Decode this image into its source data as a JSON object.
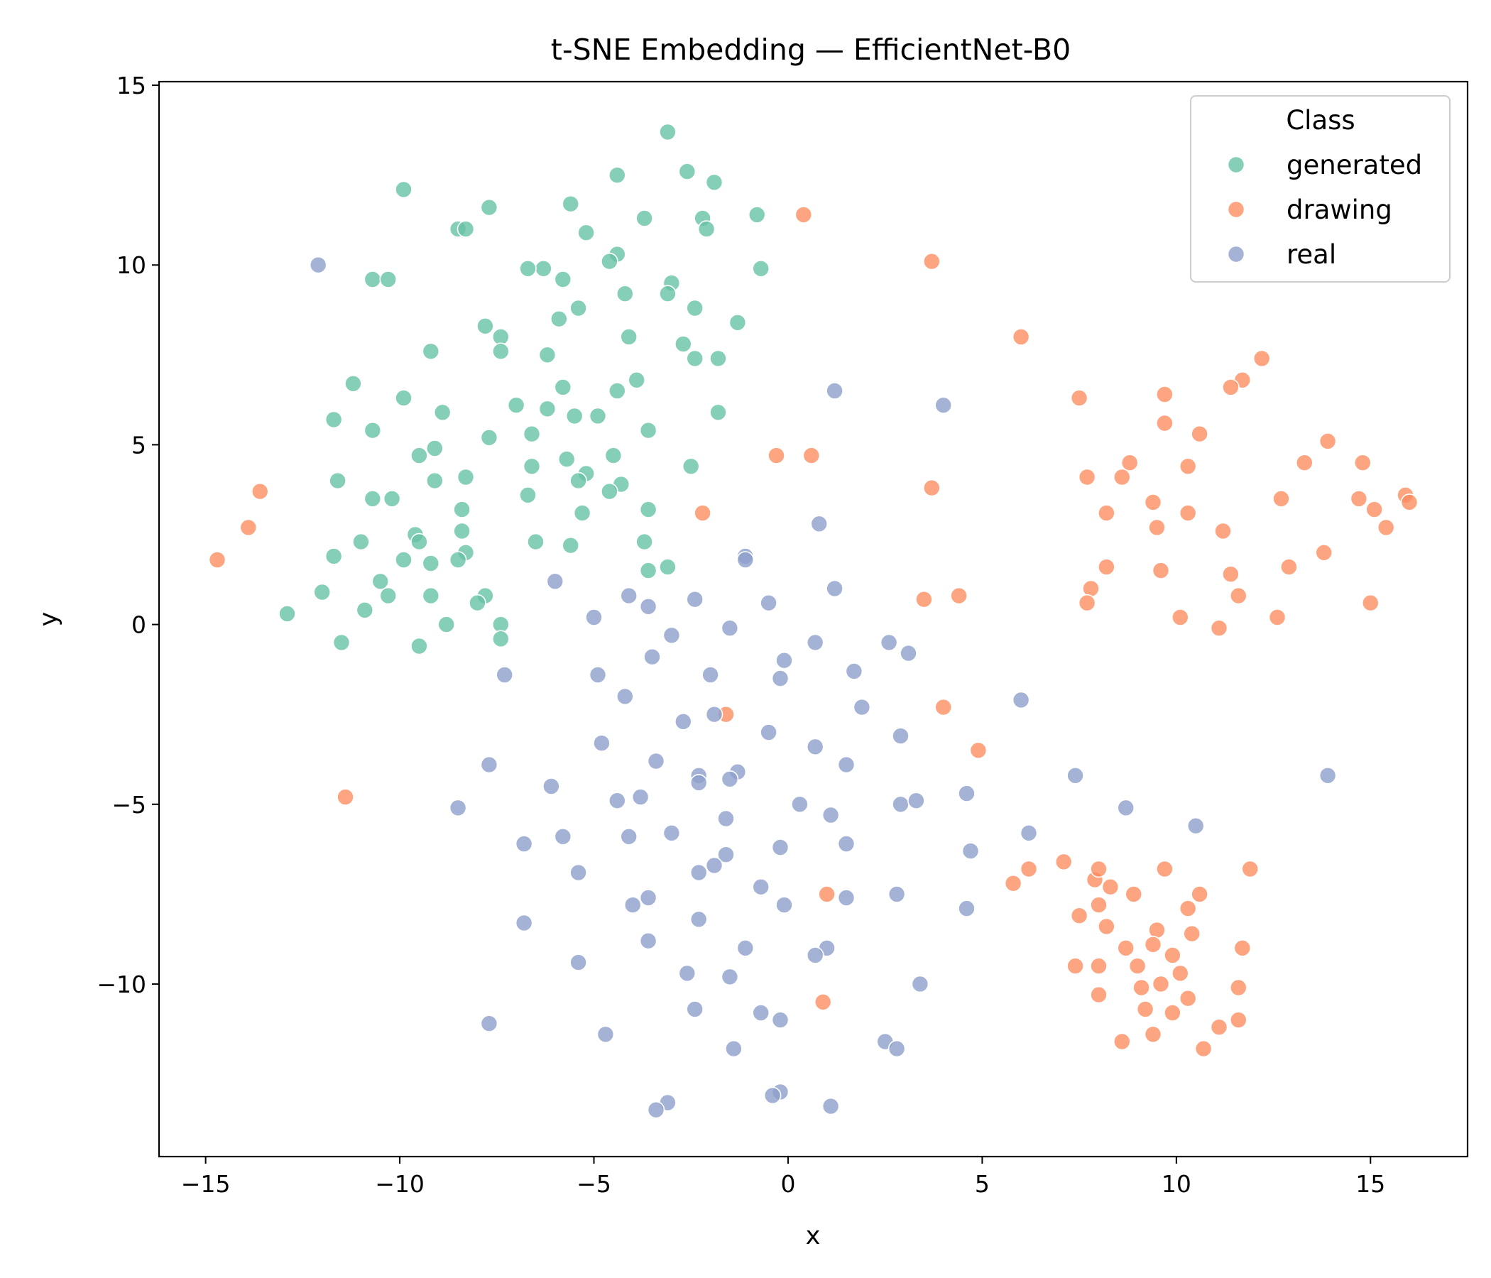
{
  "chart_data": {
    "type": "scatter",
    "title": "t-SNE Embedding — EfficientNet-B0",
    "xlabel": "x",
    "ylabel": "y",
    "xlim": [
      -16.2,
      17.5
    ],
    "ylim": [
      -14.8,
      15.1
    ],
    "xticks": [
      -15,
      -10,
      -5,
      0,
      5,
      10,
      15
    ],
    "yticks": [
      -10,
      -5,
      0,
      5,
      10,
      15
    ],
    "xtick_labels": [
      "−15",
      "−10",
      "−5",
      "0",
      "5",
      "10",
      "15"
    ],
    "ytick_labels": [
      "−10",
      "−5",
      "0",
      "5",
      "10",
      "15"
    ],
    "grid": false,
    "legend": {
      "title": "Class",
      "placement": "top-right"
    },
    "series": [
      {
        "name": "generated",
        "color": "#66c2a5",
        "points": [
          [
            -3.1,
            13.7
          ],
          [
            -2.6,
            12.6
          ],
          [
            -4.4,
            12.5
          ],
          [
            -1.9,
            12.3
          ],
          [
            -9.9,
            12.1
          ],
          [
            -7.7,
            11.6
          ],
          [
            -5.6,
            11.7
          ],
          [
            -3.7,
            11.3
          ],
          [
            -2.2,
            11.3
          ],
          [
            -0.8,
            11.4
          ],
          [
            -8.5,
            11.0
          ],
          [
            -8.3,
            11.0
          ],
          [
            -5.2,
            10.9
          ],
          [
            -2.1,
            11.0
          ],
          [
            -4.4,
            10.3
          ],
          [
            -4.6,
            10.1
          ],
          [
            -6.3,
            9.9
          ],
          [
            -6.7,
            9.9
          ],
          [
            -0.7,
            9.9
          ],
          [
            -10.7,
            9.6
          ],
          [
            -10.3,
            9.6
          ],
          [
            -5.8,
            9.6
          ],
          [
            -3.0,
            9.5
          ],
          [
            -3.1,
            9.2
          ],
          [
            -4.2,
            9.2
          ],
          [
            -5.4,
            8.8
          ],
          [
            -2.4,
            8.8
          ],
          [
            -1.3,
            8.4
          ],
          [
            -5.9,
            8.5
          ],
          [
            -7.8,
            8.3
          ],
          [
            -7.4,
            8.0
          ],
          [
            -4.1,
            8.0
          ],
          [
            -2.7,
            7.8
          ],
          [
            -7.4,
            7.6
          ],
          [
            -9.2,
            7.6
          ],
          [
            -6.2,
            7.5
          ],
          [
            -2.4,
            7.4
          ],
          [
            -1.8,
            7.4
          ],
          [
            -11.2,
            6.7
          ],
          [
            -3.9,
            6.8
          ],
          [
            -5.8,
            6.6
          ],
          [
            -4.4,
            6.5
          ],
          [
            -9.9,
            6.3
          ],
          [
            -7.0,
            6.1
          ],
          [
            -6.2,
            6.0
          ],
          [
            -1.8,
            5.9
          ],
          [
            -11.7,
            5.7
          ],
          [
            -8.9,
            5.9
          ],
          [
            -5.5,
            5.8
          ],
          [
            -4.9,
            5.8
          ],
          [
            -10.7,
            5.4
          ],
          [
            -3.6,
            5.4
          ],
          [
            -6.6,
            5.3
          ],
          [
            -7.7,
            5.2
          ],
          [
            -9.1,
            4.9
          ],
          [
            -9.5,
            4.7
          ],
          [
            -5.7,
            4.6
          ],
          [
            -4.5,
            4.7
          ],
          [
            -6.6,
            4.4
          ],
          [
            -2.5,
            4.4
          ],
          [
            -11.6,
            4.0
          ],
          [
            -9.1,
            4.0
          ],
          [
            -8.3,
            4.1
          ],
          [
            -5.2,
            4.2
          ],
          [
            -5.4,
            4.0
          ],
          [
            -4.3,
            3.9
          ],
          [
            -4.6,
            3.7
          ],
          [
            -10.7,
            3.5
          ],
          [
            -10.2,
            3.5
          ],
          [
            -6.7,
            3.6
          ],
          [
            -8.4,
            3.2
          ],
          [
            -5.3,
            3.1
          ],
          [
            -3.6,
            3.2
          ],
          [
            -9.6,
            2.5
          ],
          [
            -9.5,
            2.3
          ],
          [
            -8.4,
            2.6
          ],
          [
            -6.5,
            2.3
          ],
          [
            -5.6,
            2.2
          ],
          [
            -3.7,
            2.3
          ],
          [
            -11.7,
            1.9
          ],
          [
            -11.0,
            2.3
          ],
          [
            -8.3,
            2.0
          ],
          [
            -9.9,
            1.8
          ],
          [
            -9.2,
            1.7
          ],
          [
            -8.5,
            1.8
          ],
          [
            -3.6,
            1.5
          ],
          [
            -3.1,
            1.6
          ],
          [
            -10.5,
            1.2
          ],
          [
            -12.0,
            0.9
          ],
          [
            -10.3,
            0.8
          ],
          [
            -9.2,
            0.8
          ],
          [
            -7.8,
            0.8
          ],
          [
            -8.0,
            0.6
          ],
          [
            -10.9,
            0.4
          ],
          [
            -12.9,
            0.3
          ],
          [
            -8.8,
            0.0
          ],
          [
            -7.4,
            0.0
          ],
          [
            -7.4,
            -0.4
          ],
          [
            -11.5,
            -0.5
          ],
          [
            -9.5,
            -0.6
          ]
        ]
      },
      {
        "name": "drawing",
        "color": "#fc8d62",
        "points": [
          [
            0.4,
            11.4
          ],
          [
            3.7,
            10.1
          ],
          [
            6.0,
            8.0
          ],
          [
            12.2,
            7.4
          ],
          [
            7.5,
            6.3
          ],
          [
            9.7,
            6.4
          ],
          [
            11.7,
            6.8
          ],
          [
            11.4,
            6.6
          ],
          [
            9.7,
            5.6
          ],
          [
            10.6,
            5.3
          ],
          [
            13.9,
            5.1
          ],
          [
            -0.3,
            4.7
          ],
          [
            0.6,
            4.7
          ],
          [
            8.8,
            4.5
          ],
          [
            13.3,
            4.5
          ],
          [
            14.8,
            4.5
          ],
          [
            7.7,
            4.1
          ],
          [
            8.6,
            4.1
          ],
          [
            10.3,
            4.4
          ],
          [
            3.7,
            3.8
          ],
          [
            -13.6,
            3.7
          ],
          [
            15.9,
            3.6
          ],
          [
            16.0,
            3.4
          ],
          [
            14.7,
            3.5
          ],
          [
            12.7,
            3.5
          ],
          [
            15.1,
            3.2
          ],
          [
            -2.2,
            3.1
          ],
          [
            8.2,
            3.1
          ],
          [
            9.4,
            3.4
          ],
          [
            10.3,
            3.1
          ],
          [
            -13.9,
            2.7
          ],
          [
            9.5,
            2.7
          ],
          [
            11.2,
            2.6
          ],
          [
            15.4,
            2.7
          ],
          [
            13.8,
            2.0
          ],
          [
            -14.7,
            1.8
          ],
          [
            8.2,
            1.6
          ],
          [
            9.6,
            1.5
          ],
          [
            11.4,
            1.4
          ],
          [
            12.9,
            1.6
          ],
          [
            7.8,
            1.0
          ],
          [
            7.7,
            0.6
          ],
          [
            3.5,
            0.7
          ],
          [
            4.4,
            0.8
          ],
          [
            11.6,
            0.8
          ],
          [
            15.0,
            0.6
          ],
          [
            10.1,
            0.2
          ],
          [
            12.6,
            0.2
          ],
          [
            11.1,
            -0.1
          ],
          [
            -1.6,
            -2.5
          ],
          [
            4.0,
            -2.3
          ],
          [
            4.9,
            -3.5
          ],
          [
            -11.4,
            -4.8
          ],
          [
            7.1,
            -6.6
          ],
          [
            5.8,
            -7.2
          ],
          [
            6.2,
            -6.8
          ],
          [
            7.9,
            -7.1
          ],
          [
            8.0,
            -6.8
          ],
          [
            8.3,
            -7.3
          ],
          [
            8.9,
            -7.5
          ],
          [
            9.7,
            -6.8
          ],
          [
            11.9,
            -6.8
          ],
          [
            10.6,
            -7.5
          ],
          [
            10.3,
            -7.9
          ],
          [
            8.0,
            -7.8
          ],
          [
            7.5,
            -8.1
          ],
          [
            8.2,
            -8.4
          ],
          [
            9.5,
            -8.5
          ],
          [
            9.4,
            -8.9
          ],
          [
            8.7,
            -9.0
          ],
          [
            10.4,
            -8.6
          ],
          [
            11.7,
            -9.0
          ],
          [
            9.9,
            -9.2
          ],
          [
            9.0,
            -9.5
          ],
          [
            10.1,
            -9.7
          ],
          [
            7.4,
            -9.5
          ],
          [
            8.0,
            -9.5
          ],
          [
            9.1,
            -10.1
          ],
          [
            9.6,
            -10.0
          ],
          [
            11.6,
            -10.1
          ],
          [
            8.0,
            -10.3
          ],
          [
            10.3,
            -10.4
          ],
          [
            9.2,
            -10.7
          ],
          [
            9.9,
            -10.8
          ],
          [
            11.6,
            -11.0
          ],
          [
            11.1,
            -11.2
          ],
          [
            9.4,
            -11.4
          ],
          [
            8.6,
            -11.6
          ],
          [
            10.7,
            -11.8
          ],
          [
            0.9,
            -10.5
          ],
          [
            1.0,
            -7.5
          ]
        ]
      },
      {
        "name": "real",
        "color": "#8da0cb",
        "points": [
          [
            -12.1,
            10.0
          ],
          [
            1.2,
            6.5
          ],
          [
            4.0,
            6.1
          ],
          [
            0.8,
            2.8
          ],
          [
            -1.1,
            1.9
          ],
          [
            -1.1,
            1.8
          ],
          [
            -6.0,
            1.2
          ],
          [
            -4.1,
            0.8
          ],
          [
            -2.4,
            0.7
          ],
          [
            1.2,
            1.0
          ],
          [
            -3.6,
            0.5
          ],
          [
            -0.5,
            0.6
          ],
          [
            -5.0,
            0.2
          ],
          [
            -3.0,
            -0.3
          ],
          [
            -1.5,
            -0.1
          ],
          [
            0.7,
            -0.5
          ],
          [
            2.6,
            -0.5
          ],
          [
            3.1,
            -0.8
          ],
          [
            -3.5,
            -0.9
          ],
          [
            -0.1,
            -1.0
          ],
          [
            1.7,
            -1.3
          ],
          [
            -7.3,
            -1.4
          ],
          [
            -4.9,
            -1.4
          ],
          [
            -2.0,
            -1.4
          ],
          [
            -0.2,
            -1.5
          ],
          [
            -4.2,
            -2.0
          ],
          [
            1.9,
            -2.3
          ],
          [
            -1.9,
            -2.5
          ],
          [
            -2.7,
            -2.7
          ],
          [
            6.0,
            -2.1
          ],
          [
            -0.5,
            -3.0
          ],
          [
            2.9,
            -3.1
          ],
          [
            -4.8,
            -3.3
          ],
          [
            0.7,
            -3.4
          ],
          [
            -7.7,
            -3.9
          ],
          [
            -3.4,
            -3.8
          ],
          [
            1.5,
            -3.9
          ],
          [
            -1.3,
            -4.1
          ],
          [
            -2.3,
            -4.2
          ],
          [
            -2.3,
            -4.4
          ],
          [
            -1.5,
            -4.3
          ],
          [
            7.4,
            -4.2
          ],
          [
            13.9,
            -4.2
          ],
          [
            -6.1,
            -4.5
          ],
          [
            -4.4,
            -4.9
          ],
          [
            -3.8,
            -4.8
          ],
          [
            0.3,
            -5.0
          ],
          [
            1.1,
            -5.3
          ],
          [
            2.9,
            -5.0
          ],
          [
            3.3,
            -4.9
          ],
          [
            4.6,
            -4.7
          ],
          [
            -8.5,
            -5.1
          ],
          [
            8.7,
            -5.1
          ],
          [
            -1.6,
            -5.4
          ],
          [
            10.5,
            -5.6
          ],
          [
            -5.8,
            -5.9
          ],
          [
            -4.1,
            -5.9
          ],
          [
            -3.0,
            -5.8
          ],
          [
            6.2,
            -5.8
          ],
          [
            -6.8,
            -6.1
          ],
          [
            -0.2,
            -6.2
          ],
          [
            1.5,
            -6.1
          ],
          [
            4.7,
            -6.3
          ],
          [
            -1.6,
            -6.4
          ],
          [
            -1.9,
            -6.7
          ],
          [
            -5.4,
            -6.9
          ],
          [
            -2.3,
            -6.9
          ],
          [
            -0.7,
            -7.3
          ],
          [
            2.8,
            -7.5
          ],
          [
            1.5,
            -7.6
          ],
          [
            -3.6,
            -7.6
          ],
          [
            -4.0,
            -7.8
          ],
          [
            -0.1,
            -7.8
          ],
          [
            4.6,
            -7.9
          ],
          [
            -2.3,
            -8.2
          ],
          [
            -6.8,
            -8.3
          ],
          [
            -3.6,
            -8.8
          ],
          [
            -1.1,
            -9.0
          ],
          [
            1.0,
            -9.0
          ],
          [
            0.7,
            -9.2
          ],
          [
            -5.4,
            -9.4
          ],
          [
            -2.6,
            -9.7
          ],
          [
            -1.5,
            -9.8
          ],
          [
            3.4,
            -10.0
          ],
          [
            -2.4,
            -10.7
          ],
          [
            -0.7,
            -10.8
          ],
          [
            -0.2,
            -11.0
          ],
          [
            -7.7,
            -11.1
          ],
          [
            -4.7,
            -11.4
          ],
          [
            2.5,
            -11.6
          ],
          [
            2.8,
            -11.8
          ],
          [
            -1.4,
            -11.8
          ],
          [
            -0.2,
            -13.0
          ],
          [
            -0.4,
            -13.1
          ],
          [
            -3.1,
            -13.3
          ],
          [
            -3.4,
            -13.5
          ],
          [
            1.1,
            -13.4
          ]
        ]
      }
    ]
  }
}
